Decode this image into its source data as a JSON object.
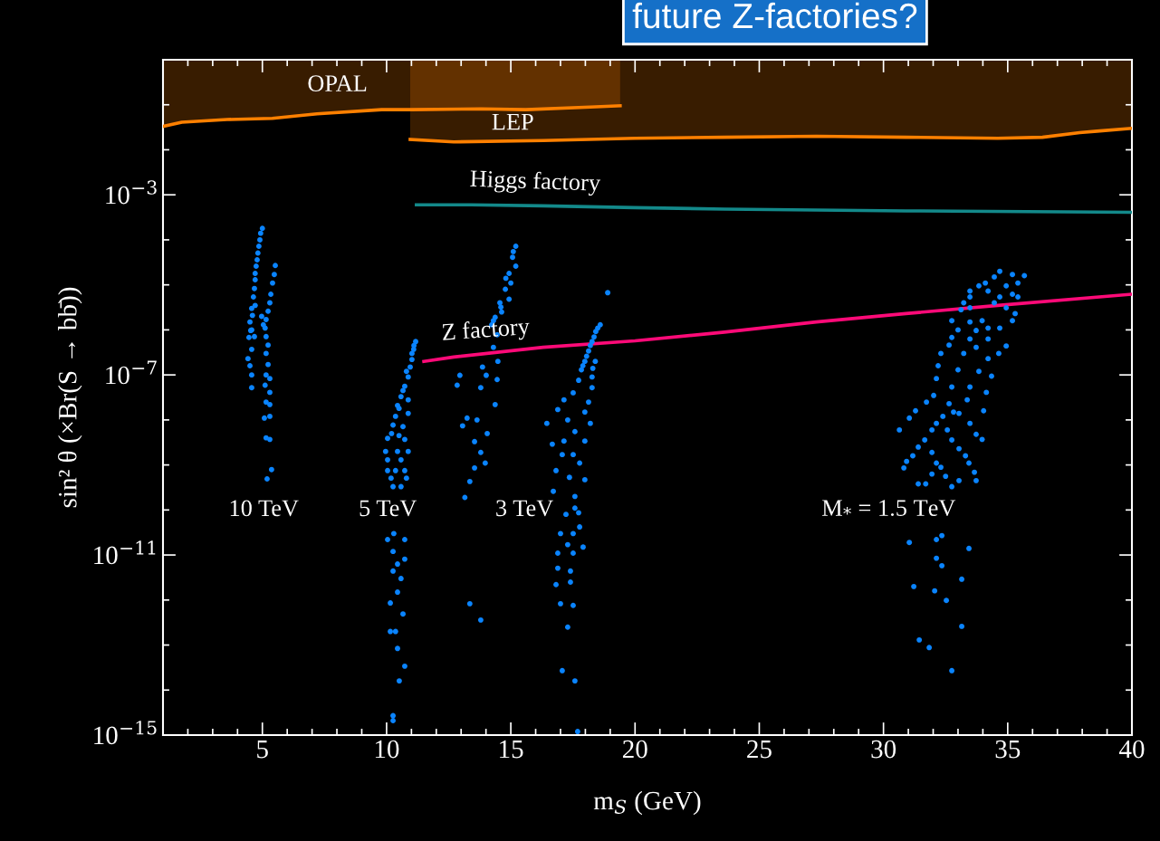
{
  "chart_data": {
    "type": "scatter",
    "title": "future Z-factories?",
    "xlabel": "m$_{S}$ (GeV)",
    "ylabel": "sin² θ (×Br(S → bb̄))",
    "log": "y",
    "marker": "circle",
    "xlim": [
      1,
      40
    ],
    "ylim": [
      1e-15,
      1
    ],
    "xticks": [
      {
        "value": 1,
        "label": null
      },
      {
        "value": 2,
        "label": null
      },
      {
        "value": 3,
        "label": null
      },
      {
        "value": 4,
        "label": null
      },
      5,
      {
        "value": 6,
        "label": null
      },
      {
        "value": 7,
        "label": null
      },
      {
        "value": 8,
        "label": null
      },
      {
        "value": 9,
        "label": null
      },
      10,
      {
        "value": 11,
        "label": null
      },
      {
        "value": 12,
        "label": null
      },
      {
        "value": 13,
        "label": null
      },
      {
        "value": 14,
        "label": null
      },
      15,
      {
        "value": 16,
        "label": null
      },
      {
        "value": 17,
        "label": null
      },
      {
        "value": 18,
        "label": null
      },
      {
        "value": 19,
        "label": null
      },
      20,
      {
        "value": 21,
        "label": null
      },
      {
        "value": 22,
        "label": null
      },
      {
        "value": 23,
        "label": null
      },
      {
        "value": 24,
        "label": null
      },
      25,
      {
        "value": 26,
        "label": null
      },
      {
        "value": 27,
        "label": null
      },
      {
        "value": 28,
        "label": null
      },
      {
        "value": 29,
        "label": null
      },
      30,
      {
        "value": 31,
        "label": null
      },
      {
        "value": 32,
        "label": null
      },
      {
        "value": 33,
        "label": null
      },
      {
        "value": 34,
        "label": null
      },
      35,
      {
        "value": 36,
        "label": null
      },
      {
        "value": 37,
        "label": null
      },
      {
        "value": 38,
        "label": null
      },
      {
        "value": 39,
        "label": null
      },
      40
    ],
    "yticks": [
      {
        "value": 1e-15,
        "label": "10$^{−15}$"
      },
      {
        "value": 1e-14,
        "label": null
      },
      {
        "value": 1e-13,
        "label": null
      },
      {
        "value": 1e-12,
        "label": null
      },
      {
        "value": 1e-11,
        "label": "10$^{−11}$"
      },
      {
        "value": 1e-10,
        "label": null
      },
      {
        "value": 1e-09,
        "label": null
      },
      {
        "value": 1e-08,
        "label": null
      },
      {
        "value": 1e-07,
        "label": "10$^{−7}$"
      },
      {
        "value": 1e-06,
        "label": null
      },
      {
        "value": 1e-05,
        "label": null
      },
      {
        "value": 0.0001,
        "label": null
      },
      {
        "value": 0.001,
        "label": "10$^{−3}$"
      },
      {
        "value": 0.01,
        "label": null
      },
      {
        "value": 0.1,
        "label": null
      }
    ],
    "series": [
      {
        "type": "line",
        "marker": "none",
        "color": "#ff8000",
        "x": [
          1,
          1.76,
          3.58,
          5.4,
          7.2,
          9.8,
          11.0,
          13.8,
          15.6,
          18.2,
          19.4
        ],
        "values": [
          0.033,
          0.041,
          0.047,
          0.05,
          0.063,
          0.078,
          0.078,
          0.081,
          0.078,
          0.089,
          0.095
        ],
        "lower": [
          0.033,
          0.041,
          0.047,
          0.05,
          0.063,
          0.078,
          0.078,
          0.081,
          0.078,
          0.089,
          0.095
        ],
        "upper": [
          1,
          1,
          1,
          1,
          1,
          1,
          1,
          1,
          1,
          1,
          1
        ]
      },
      {
        "type": "line",
        "marker": "none",
        "color": "#ff8000",
        "x": [
          10.95,
          12.7,
          16.3,
          20.0,
          23.6,
          27.3,
          30.9,
          34.6,
          36.4,
          37.9,
          38.6,
          40
        ],
        "values": [
          0.017,
          0.015,
          0.016,
          0.018,
          0.019,
          0.02,
          0.019,
          0.018,
          0.019,
          0.024,
          0.026,
          0.03
        ],
        "lower": [
          0.017,
          0.015,
          0.016,
          0.018,
          0.019,
          0.02,
          0.019,
          0.018,
          0.019,
          0.024,
          0.026,
          0.03
        ],
        "upper": [
          1,
          1,
          1,
          1,
          1,
          1,
          1,
          1,
          1,
          1,
          1,
          1
        ]
      },
      {
        "type": "line",
        "marker": "none",
        "color": "#13898a",
        "x": [
          11.2,
          13.4,
          16.3,
          20.0,
          23.6,
          30.9,
          40
        ],
        "values": [
          0.0006,
          0.0006,
          0.00057,
          0.00052,
          0.00048,
          0.00044,
          0.00041
        ]
      },
      {
        "type": "line",
        "marker": "none",
        "color": "#ff0a78",
        "x": [
          11.5,
          12.7,
          16.3,
          20.0,
          23.6,
          27.3,
          30.9,
          34.6,
          40
        ],
        "values": [
          2e-07,
          2.5e-07,
          4.1e-07,
          5.7e-07,
          8.9e-07,
          1.5e-06,
          2.3e-06,
          3.5e-06,
          6.2e-06
        ]
      },
      {
        "color": "#0a84ff",
        "x": [
          5.0,
          4.93,
          4.9,
          4.86,
          4.82,
          4.79,
          4.75,
          4.71,
          4.71,
          4.68,
          4.64,
          4.71,
          4.6,
          4.5,
          4.53,
          4.46,
          4.57,
          4.57,
          4.57,
          4.68,
          4.42,
          4.5,
          4.57,
          4.57,
          5.52,
          5.48,
          5.41,
          5.34,
          5.3,
          5.23,
          5.15,
          5.11,
          5.15,
          5.23,
          5.15,
          5.23,
          5.15,
          5.3,
          5.11,
          5.3,
          5.15,
          5.3,
          5.08,
          5.3,
          5.15,
          5.3,
          5.37,
          5.19,
          4.97,
          5.04
        ],
        "values": [
          0.00018,
          0.00014,
          0.0001,
          7.2e-05,
          5.1e-05,
          3.6e-05,
          2.6e-05,
          1.8e-05,
          1.3e-05,
          8.3e-06,
          5.4e-06,
          3.5e-06,
          2.1e-06,
          1.5e-06,
          9.7e-07,
          6.8e-07,
          3.7e-07,
          3e-06,
          1e-06,
          7.1e-07,
          2.3e-07,
          1.6e-07,
          1e-07,
          5.2e-08,
          2.7e-05,
          1.7e-05,
          1.1e-05,
          6.2e-06,
          4e-06,
          2.6e-06,
          1.7e-06,
          1.1e-06,
          7.1e-07,
          4.6e-07,
          3e-07,
          1.7e-07,
          1e-07,
          8.3e-08,
          5.9e-08,
          4.1e-08,
          2.5e-08,
          2.2e-08,
          1.1e-08,
          1.2e-08,
          4e-09,
          3.7e-09,
          7.9e-10,
          4.9e-10,
          2e-06,
          1.3e-06
        ]
      },
      {
        "color": "#0a84ff",
        "x": [
          11.17,
          11.09,
          11.02,
          10.95,
          10.87,
          10.73,
          10.58,
          10.87,
          10.44,
          10.87,
          10.36,
          10.26,
          10.66,
          10.04,
          10.73,
          9.96,
          10.44,
          10.87,
          10.04,
          10.58,
          10.04,
          10.36,
          10.73,
          10.18,
          10.8,
          10.26,
          10.58,
          11.1,
          11.02,
          10.8,
          10.66,
          10.5,
          10.2,
          10.5,
          10.29,
          10.04,
          10.73,
          10.26,
          10.73,
          10.44,
          10.26,
          10.58,
          10.44,
          10.15,
          10.66,
          10.15,
          10.36,
          10.44,
          10.73,
          10.51,
          10.26,
          10.26
        ],
        "values": [
          5.5e-07,
          3.7e-07,
          2.2e-07,
          1.5e-07,
          9e-08,
          5.6e-08,
          3.3e-08,
          2.8e-08,
          2.1e-08,
          1.4e-08,
          1.2e-08,
          7.7e-09,
          7.1e-09,
          3.9e-09,
          3.7e-09,
          2e-09,
          2e-09,
          2e-09,
          1.3e-09,
          1.3e-09,
          7.5e-10,
          7.5e-10,
          7.5e-10,
          5.1e-10,
          5.1e-10,
          3.3e-10,
          3.3e-10,
          4.5e-07,
          3e-07,
          1.2e-07,
          4.5e-08,
          1.8e-08,
          5e-09,
          4.5e-09,
          3e-11,
          2.2e-11,
          2.2e-11,
          1.2e-11,
          8.1e-12,
          6.3e-12,
          4.4e-12,
          3e-12,
          1.5e-12,
          8.6e-13,
          4.9e-13,
          2e-13,
          2e-13,
          8.4e-14,
          3.4e-14,
          1.6e-14,
          2.7e-15,
          2.1e-15
        ]
      },
      {
        "color": "#0a84ff",
        "x": [
          15.2,
          15.07,
          15.2,
          14.93,
          15.0,
          14.78,
          14.93,
          14.56,
          14.63,
          14.37,
          14.23,
          14.45,
          14.3,
          14.48,
          13.86,
          14.45,
          14.01,
          13.79,
          14.37,
          12.95,
          12.84,
          13.24,
          13.64,
          13.06,
          14.05,
          13.54,
          13.79,
          13.97,
          13.54,
          13.35,
          13.15,
          13.35,
          13.79,
          15.1,
          14.8,
          14.6,
          14.3,
          18.9
        ],
        "values": [
          7.2e-05,
          4.1e-05,
          2.6e-05,
          1.8e-05,
          1.1e-05,
          8e-06,
          4.8e-06,
          4e-06,
          2.5e-06,
          1.9e-06,
          1.3e-06,
          7.8e-07,
          4.1e-07,
          2e-07,
          1.5e-07,
          7.9e-08,
          9.8e-08,
          5.2e-08,
          2.2e-08,
          9.8e-08,
          5.9e-08,
          1.1e-08,
          1e-08,
          7.4e-09,
          5e-09,
          3.3e-09,
          1.9e-09,
          1.1e-09,
          8.6e-10,
          4.3e-10,
          1.9e-10,
          8.3e-13,
          3.6e-13,
          5.5e-05,
          1.4e-05,
          3.2e-06,
          1.6e-06,
          6.7e-06
        ]
      },
      {
        "color": "#0a84ff",
        "x": [
          18.6,
          18.42,
          18.27,
          18.13,
          17.98,
          17.84,
          17.73,
          18.27,
          18.27,
          17.51,
          18.13,
          17.14,
          16.89,
          17.98,
          18.2,
          16.45,
          17.29,
          17.58,
          17.98,
          16.67,
          17.14,
          17.07,
          17.51,
          17.77,
          17.98,
          16.82,
          17.36,
          16.71,
          17.58,
          17.58,
          17.22,
          17.73,
          17.77,
          17.0,
          17.51,
          17.29,
          17.91,
          16.89,
          17.51,
          16.89,
          17.4,
          16.82,
          17.4,
          17.0,
          17.51,
          17.29,
          17.07,
          17.58,
          17.69,
          18.5,
          18.35,
          18.2,
          18.05,
          17.9,
          18.4,
          18.3
        ],
        "values": [
          1.3e-06,
          9.2e-07,
          5.5e-07,
          3.4e-07,
          2e-07,
          1.3e-07,
          7.6e-08,
          9e-08,
          5.2e-08,
          4e-08,
          2.5e-08,
          2.8e-08,
          1.7e-08,
          1.5e-08,
          8.4e-09,
          8.4e-09,
          1e-08,
          5.5e-09,
          3.4e-09,
          2.9e-09,
          3.4e-09,
          1.7e-09,
          1.7e-09,
          1.1e-09,
          4.7e-10,
          7.5e-10,
          5.3e-10,
          2.6e-10,
          2e-10,
          1.1e-10,
          8e-11,
          8.7e-11,
          4.2e-11,
          3e-11,
          3e-11,
          1.7e-11,
          1.5e-11,
          1.1e-11,
          1.1e-11,
          5.1e-12,
          4.4e-12,
          2.2e-12,
          2.5e-12,
          8.3e-13,
          7.6e-13,
          2.5e-13,
          2.7e-14,
          1.6e-14,
          1.2e-15,
          1.1e-06,
          7e-07,
          4.5e-07,
          2.6e-07,
          1.6e-07,
          2e-07,
          1.4e-07
        ]
      },
      {
        "color": "#0a84ff",
        "x": [
          34.68,
          35.67,
          35.19,
          34.46,
          34.1,
          35.41,
          34.94,
          33.84,
          33.48,
          34.21,
          35.19,
          33.48,
          34.68,
          35.41,
          33.23,
          34.46,
          33.48,
          34.94,
          35.3,
          33.12,
          32.75,
          33.97,
          35.19,
          33.48,
          33.0,
          33.73,
          34.68,
          34.21,
          32.75,
          33.48,
          34.21,
          34.94,
          32.64,
          33.73,
          32.31,
          33.23,
          34.21,
          34.64,
          32.2,
          33.0,
          33.84,
          34.35,
          32.13,
          32.75,
          33.48,
          34.14,
          32.02,
          32.64,
          33.37,
          34.03,
          31.73,
          31.29,
          31.04,
          30.64,
          32.39,
          32.13,
          33.48,
          32.82,
          33.04,
          33.73,
          33.97,
          31.66,
          31.4,
          31.18,
          30.93,
          30.82,
          31.95,
          32.57,
          32.75,
          33.04,
          33.3,
          33.44,
          33.66,
          33.73,
          31.95,
          32.13,
          32.31,
          32.5,
          32.75,
          33.04,
          31.95,
          31.4,
          31.7,
          31.04,
          32.13,
          32.35,
          33.44,
          32.13,
          32.35,
          33.15,
          31.22,
          32.06,
          32.53,
          33.15,
          31.44,
          31.84,
          32.75
        ],
        "values": [
          2e-05,
          1.6e-05,
          1.7e-05,
          1.5e-05,
          1.1e-05,
          1.1e-05,
          9.5e-06,
          9.5e-06,
          7.3e-06,
          7.3e-06,
          6.2e-06,
          5.4e-06,
          5.4e-06,
          5.4e-06,
          4e-06,
          4e-06,
          3.1e-06,
          3.1e-06,
          2.3e-06,
          2.8e-06,
          1.6e-06,
          1.6e-06,
          1.6e-06,
          1.5e-06,
          1e-06,
          9.7e-07,
          1.1e-06,
          1.1e-06,
          6.8e-07,
          6.3e-07,
          6.3e-07,
          4.4e-07,
          4.6e-07,
          4.1e-07,
          3e-07,
          3e-07,
          2.3e-07,
          3e-07,
          1.6e-07,
          1.3e-07,
          1.2e-07,
          9.4e-08,
          8.3e-08,
          5.4e-08,
          5.4e-08,
          4.1e-08,
          3.5e-08,
          2.3e-08,
          2.8e-08,
          1.6e-08,
          2.5e-08,
          1.6e-08,
          1.1e-08,
          6e-09,
          1.2e-08,
          8.4e-09,
          8.4e-09,
          1.5e-08,
          1.4e-08,
          4.8e-09,
          3.7e-09,
          3.6e-09,
          2.5e-09,
          1.6e-09,
          1.2e-09,
          8.6e-10,
          6e-09,
          6e-09,
          3.6e-09,
          2.3e-09,
          1.6e-09,
          1.1e-09,
          6.9e-10,
          4.5e-10,
          1.9e-09,
          1.1e-09,
          8.9e-10,
          5.6e-10,
          3.3e-10,
          4.5e-10,
          6.3e-10,
          3.8e-10,
          3.8e-10,
          1.9e-11,
          2.2e-11,
          2.7e-11,
          1.4e-11,
          8.5e-12,
          5.8e-12,
          2.9e-12,
          2e-12,
          1.6e-12,
          9.8e-13,
          2.6e-13,
          1.3e-13,
          8.8e-14,
          2.7e-14
        ]
      }
    ],
    "annotations": [
      "OPAL",
      "LEP",
      "Higgs factory",
      "Z factory",
      "10 TeV",
      "5 TeV",
      "3 TeV",
      "M$_{*}$ = 1.5 TeV"
    ]
  }
}
